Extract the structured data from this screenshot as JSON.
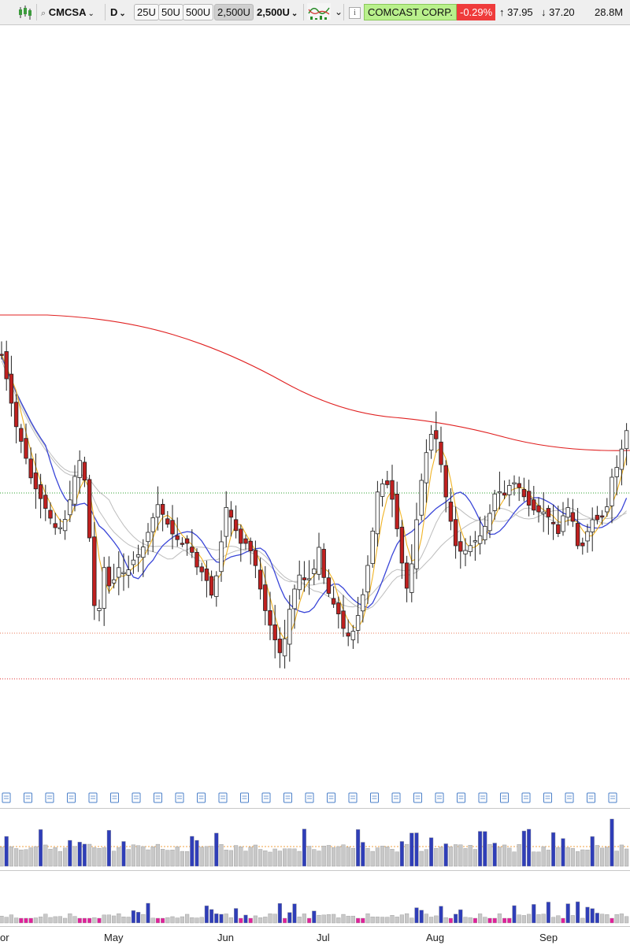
{
  "toolbar": {
    "symbol": "CMCSA",
    "period": "D",
    "presets": [
      "25U",
      "50U",
      "500U",
      "2,500U"
    ],
    "active_preset": "2,500U",
    "bars_select": "2,500U",
    "company": "COMCAST CORP.",
    "change": "-0.29%",
    "high": "37.95",
    "low": "37.20",
    "volume": "28.8M"
  },
  "x_axis": {
    "labels": [
      "or",
      "May",
      "Jun",
      "Jul",
      "Aug",
      "Sep"
    ]
  },
  "colors": {
    "up_candle": "#ffffff",
    "down_candle": "#c0201f",
    "ma_red": "#e02020",
    "ma_blue": "#3a46d8",
    "ma_yellow": "#f0b324",
    "ma_gray": "#bdbdbd",
    "volume_blue": "#2f3eb8",
    "volume_gray": "#c8c8c8",
    "volume_pink": "#e0219a"
  },
  "icons": {
    "chart_style": "candlestick-icon",
    "indicators": "indicator-chart-icon",
    "info": "info-icon",
    "news": "news-document-icon",
    "up": "arrow-up-icon",
    "down": "arrow-down-icon"
  }
}
